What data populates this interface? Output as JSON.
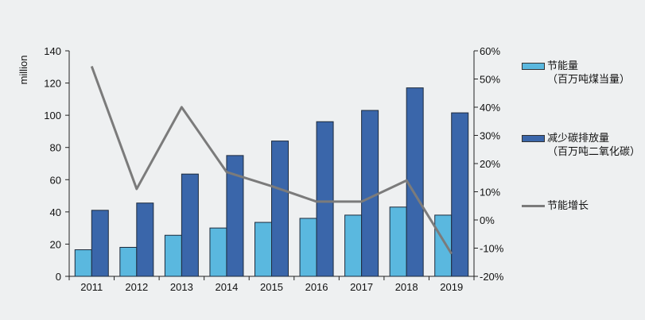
{
  "chart_data": {
    "type": "bar",
    "categories": [
      "2011",
      "2012",
      "2013",
      "2014",
      "2015",
      "2016",
      "2017",
      "2018",
      "2019"
    ],
    "series": [
      {
        "name": "节能量（百万吨煤当量）",
        "kind": "bar",
        "axis": "left",
        "color": "#5ab8df",
        "values": [
          16.5,
          18,
          25.5,
          30,
          33.5,
          36,
          38,
          43,
          38
        ]
      },
      {
        "name": "减少碳排放量（百万吨二氧化碳）",
        "kind": "bar",
        "axis": "left",
        "color": "#3a66aa",
        "values": [
          41,
          45.5,
          63.5,
          75,
          84,
          96,
          103,
          117,
          101.5
        ]
      },
      {
        "name": "节能增长",
        "kind": "line",
        "axis": "right",
        "color": "#7b7b7b",
        "values": [
          54.5,
          11,
          40,
          17,
          12,
          6.5,
          6.5,
          14,
          -12
        ]
      }
    ],
    "ylabel": "million",
    "ylim": [
      0,
      140
    ],
    "yticks": [
      "0",
      "20",
      "40",
      "60",
      "80",
      "100",
      "120",
      "140"
    ],
    "y2lim": [
      -20,
      60
    ],
    "y2ticks": [
      "-20%",
      "-10%",
      "0%",
      "10%",
      "20%",
      "30%",
      "40%",
      "50%",
      "60%"
    ],
    "grid": false,
    "legend_position": "right"
  },
  "legend": {
    "item1_line1": "节能量",
    "item1_line2": "（百万吨煤当量）",
    "item2_line1": "减少碳排放量",
    "item2_line2": "（百万吨二氧化碳）",
    "item3_label": "节能增长"
  }
}
